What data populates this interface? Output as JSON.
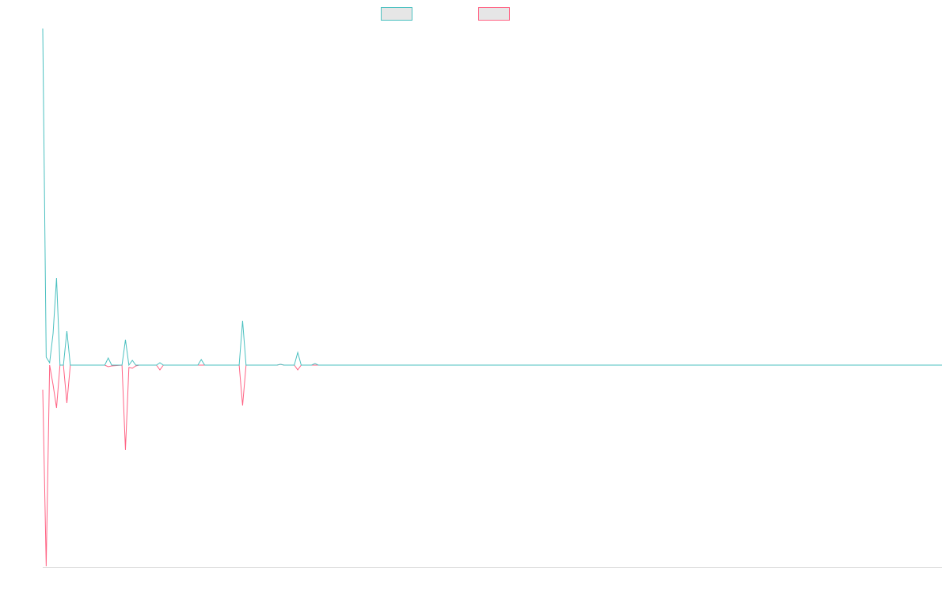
{
  "chart_data": {
    "type": "line",
    "x": [
      0,
      1,
      2,
      3,
      4,
      5,
      6,
      7,
      8,
      18,
      19,
      20,
      23,
      24,
      25,
      26,
      27,
      28,
      33,
      34,
      35,
      45,
      46,
      47,
      57,
      58,
      59,
      68,
      69,
      70,
      73,
      74,
      75,
      78,
      79,
      80,
      261
    ],
    "series": [
      {
        "color": "#ff6384",
        "values": [
          -31,
          -254,
          0,
          -25,
          -54,
          0,
          0,
          -48,
          0,
          0,
          -2,
          -1,
          0,
          -107,
          -3,
          -4,
          -1,
          0,
          0,
          -6,
          0,
          0,
          0,
          0,
          0,
          -51,
          0,
          0,
          1,
          0,
          0,
          -6,
          0,
          0,
          0,
          0,
          0
        ]
      },
      {
        "color": "#4bc0c0",
        "values": [
          425,
          10,
          3,
          40,
          110,
          0,
          0,
          43,
          0,
          0,
          9,
          0,
          0,
          32,
          0,
          6,
          0,
          0,
          0,
          3,
          0,
          0,
          7,
          0,
          0,
          56,
          0,
          0,
          1,
          0,
          0,
          16,
          0,
          0,
          2,
          0,
          0
        ]
      }
    ],
    "legend_order": [
      1,
      0
    ],
    "xlim": [
      0,
      261
    ],
    "ylim": [
      -255,
      425
    ],
    "grid": false
  }
}
